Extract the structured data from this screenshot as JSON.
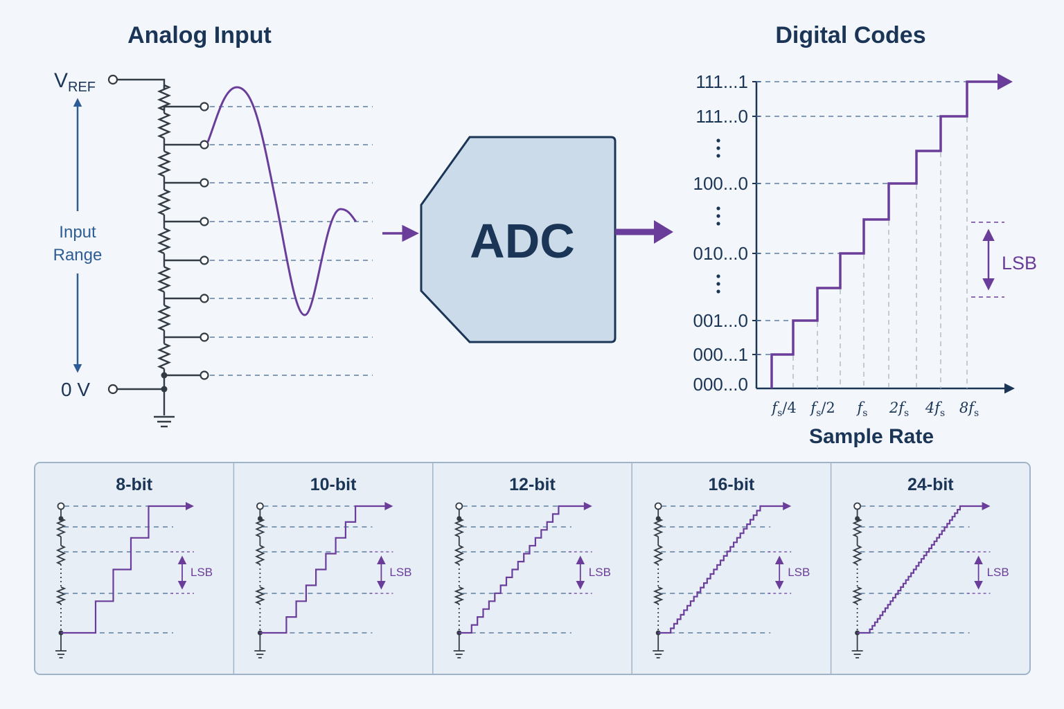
{
  "analog": {
    "title": "Analog Input",
    "vref_main": "V",
    "vref_sub": "REF",
    "zero": "0 V",
    "range_line1": "Input",
    "range_line2": "Range"
  },
  "adc": {
    "label": "ADC"
  },
  "digital": {
    "title": "Digital Codes",
    "codes": [
      "111...1",
      "111...0",
      "100...0",
      "010...0",
      "001...0",
      "000...1",
      "000...0"
    ],
    "lsb": "LSB",
    "xlabel": "Sample Rate",
    "ticks": [
      {
        "base": "f",
        "sub": "s",
        "suffix": "/4",
        "prefix": ""
      },
      {
        "base": "f",
        "sub": "s",
        "suffix": "/2",
        "prefix": ""
      },
      {
        "base": "f",
        "sub": "s",
        "suffix": "",
        "prefix": ""
      },
      {
        "base": "f",
        "sub": "s",
        "suffix": "",
        "prefix": "2"
      },
      {
        "base": "f",
        "sub": "s",
        "suffix": "",
        "prefix": "4"
      },
      {
        "base": "f",
        "sub": "s",
        "suffix": "",
        "prefix": "8"
      }
    ]
  },
  "resolutions": {
    "panels": [
      {
        "label": "8-bit",
        "steps": 4
      },
      {
        "label": "10-bit",
        "steps": 8
      },
      {
        "label": "12-bit",
        "steps": 16
      },
      {
        "label": "16-bit",
        "steps": 28
      },
      {
        "label": "24-bit",
        "steps": 36
      }
    ],
    "lsb": "LSB"
  },
  "colors": {
    "navy": "#1b3557",
    "purple": "#6a3d9a",
    "blue_arrow": "#2d5d94",
    "adc_fill": "#ccdbea",
    "panel_fill": "#e8eef5"
  }
}
